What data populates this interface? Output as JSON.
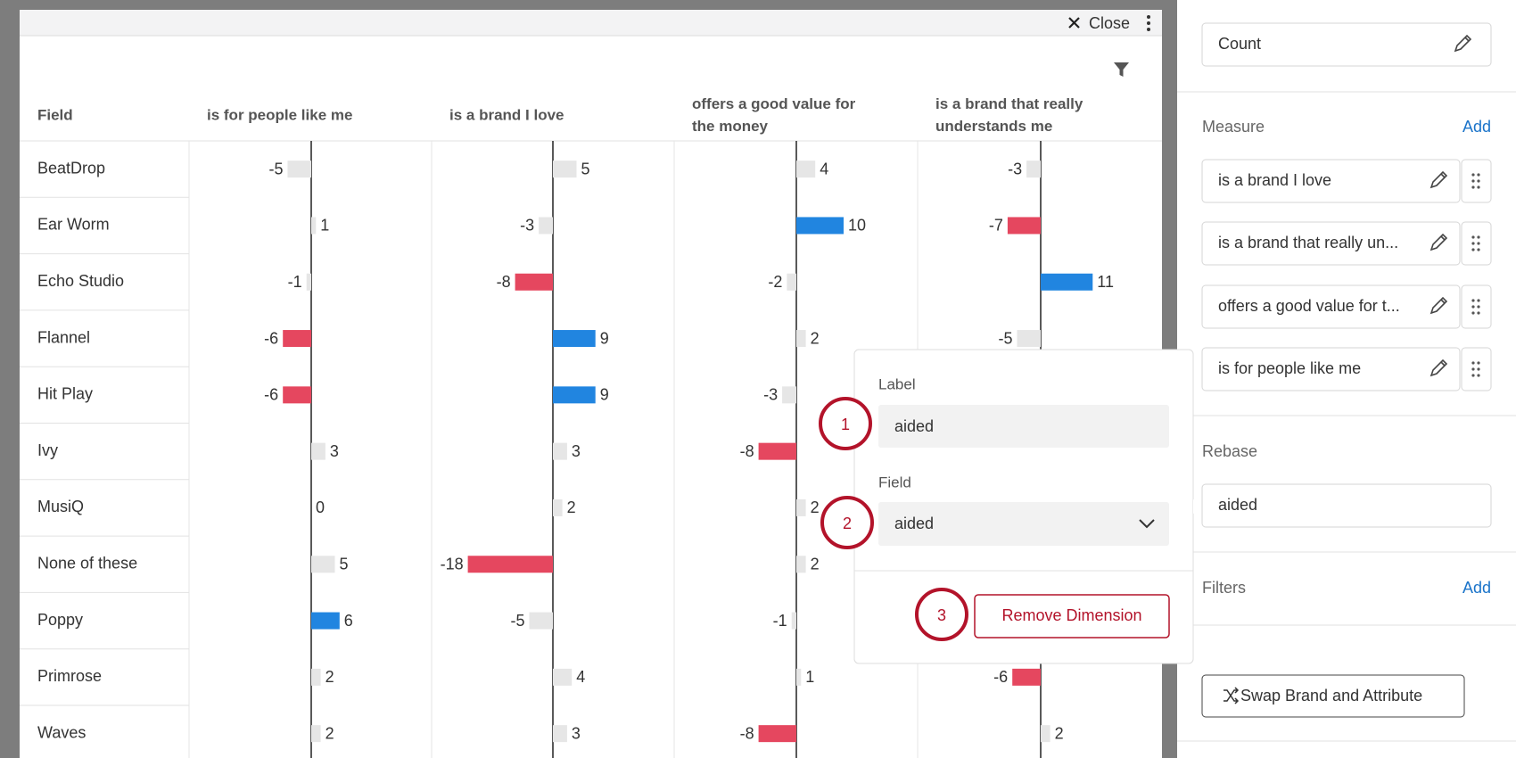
{
  "modal": {
    "close": "Close"
  },
  "table": {
    "header": [
      "Field",
      "is for people like me",
      "is a brand I love",
      "offers a good value for the money",
      "is a brand that really understands me"
    ],
    "rows": [
      {
        "field": "BeatDrop",
        "values": [
          -5,
          5,
          4,
          -3
        ]
      },
      {
        "field": "Ear Worm",
        "values": [
          1,
          -3,
          10,
          -7
        ]
      },
      {
        "field": "Echo Studio",
        "values": [
          -1,
          -8,
          -2,
          11
        ]
      },
      {
        "field": "Flannel",
        "values": [
          -6,
          9,
          2,
          -5
        ]
      },
      {
        "field": "Hit Play",
        "values": [
          -6,
          9,
          -3,
          null
        ]
      },
      {
        "field": "Ivy",
        "values": [
          3,
          3,
          -8,
          null
        ]
      },
      {
        "field": "MusiQ",
        "values": [
          0,
          2,
          2,
          null
        ]
      },
      {
        "field": "None of these",
        "values": [
          5,
          -18,
          2,
          null
        ]
      },
      {
        "field": "Poppy",
        "values": [
          6,
          -5,
          -1,
          null
        ]
      },
      {
        "field": "Primrose",
        "values": [
          2,
          4,
          1,
          -6
        ]
      },
      {
        "field": "Waves",
        "values": [
          2,
          3,
          -8,
          2
        ]
      }
    ]
  },
  "popup": {
    "label_title": "Label",
    "label_value": "aided",
    "field_title": "Field",
    "field_value": "aided",
    "remove": "Remove Dimension",
    "steps": [
      1,
      2,
      3
    ]
  },
  "sidebar": {
    "count": "Count",
    "measure_title": "Measure",
    "measure_add": "Add",
    "measures": [
      "is a brand I love",
      "is a brand that really un...",
      "offers a good value for t...",
      "is for people like me"
    ],
    "rebase_title": "Rebase",
    "rebase": "aided",
    "filters_title": "Filters",
    "filters_add": "Add",
    "swap": "Swap Brand and Attribute"
  }
}
